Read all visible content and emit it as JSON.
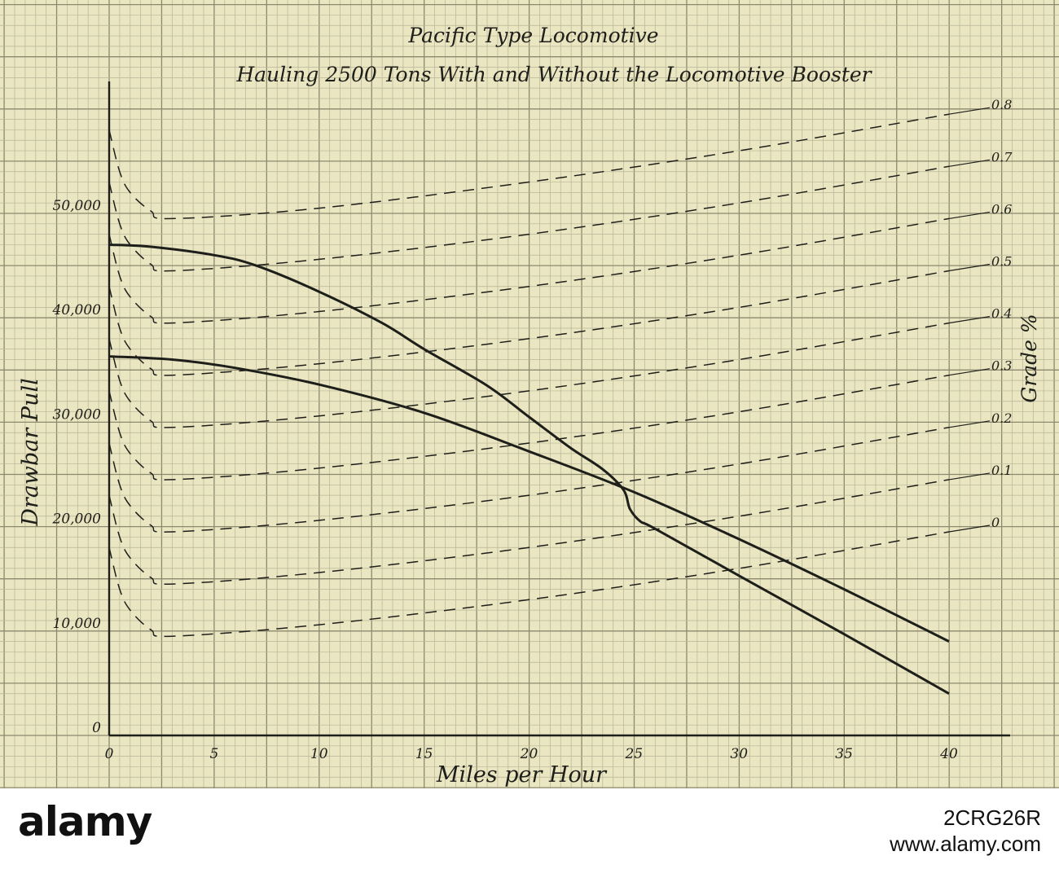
{
  "chart_data": {
    "type": "line",
    "title": "Pacific Type Locomotive",
    "subtitle": "Hauling 2500 Tons With and Without the Locomotive Booster",
    "xlabel": "Miles per Hour",
    "ylabel": "Drawbar Pull",
    "y2label": "Grade %",
    "xlim": [
      0,
      40
    ],
    "ylim": [
      0,
      60000
    ],
    "x_ticks": [
      "0",
      "5",
      "10",
      "15",
      "20",
      "25",
      "30",
      "35",
      "40"
    ],
    "y_ticks": [
      {
        "value": 0,
        "label": "0"
      },
      {
        "value": 10000,
        "label": "10,000"
      },
      {
        "value": 20000,
        "label": "20,000"
      },
      {
        "value": 30000,
        "label": "30,000"
      },
      {
        "value": 40000,
        "label": "40,000"
      },
      {
        "value": 50000,
        "label": "50,000"
      }
    ],
    "grid": true,
    "series": [
      {
        "style": "solid",
        "x": [
          0,
          2,
          5,
          7,
          10,
          13,
          15,
          18,
          20,
          22,
          23.5,
          24.5,
          24.8,
          25.3,
          26,
          30,
          35,
          40
        ],
        "y": [
          47000,
          46800,
          46000,
          45000,
          42500,
          39500,
          37000,
          33500,
          30500,
          27500,
          25500,
          23500,
          21700,
          20500,
          19800,
          15300,
          9700,
          4000
        ]
      },
      {
        "style": "solid",
        "x": [
          0,
          3,
          6,
          10,
          15,
          20,
          25,
          30,
          35,
          40
        ],
        "y": [
          36300,
          36000,
          35200,
          33600,
          30900,
          27200,
          23300,
          18800,
          14000,
          9000
        ]
      }
    ],
    "resistance_curves": [
      {
        "grade": "0.8",
        "x": [
          0,
          0.5,
          1,
          2,
          3,
          10,
          20,
          30,
          40
        ],
        "y": [
          58000,
          54000,
          52000,
          50200,
          49500,
          50500,
          53000,
          56000,
          59500
        ]
      },
      {
        "grade": "0.7",
        "x": [
          0,
          0.5,
          1,
          2,
          3,
          10,
          20,
          30,
          40
        ],
        "y": [
          53000,
          49000,
          47000,
          45100,
          44500,
          45600,
          48000,
          51000,
          54500
        ]
      },
      {
        "grade": "0.6",
        "x": [
          0,
          0.5,
          1,
          2,
          3,
          10,
          20,
          30,
          40
        ],
        "y": [
          48000,
          44000,
          42000,
          40100,
          39500,
          40600,
          43000,
          46000,
          49500
        ]
      },
      {
        "grade": "0.5",
        "x": [
          0,
          0.5,
          1,
          2,
          3,
          10,
          20,
          30,
          40
        ],
        "y": [
          43000,
          39000,
          37000,
          35100,
          34500,
          35600,
          38000,
          41000,
          44500
        ]
      },
      {
        "grade": "0.4",
        "x": [
          0,
          0.5,
          1,
          2,
          3,
          10,
          20,
          30,
          40
        ],
        "y": [
          38000,
          34000,
          32000,
          30100,
          29500,
          30600,
          33000,
          36000,
          39500
        ]
      },
      {
        "grade": "0.3",
        "x": [
          0,
          0.5,
          1,
          2,
          3,
          10,
          20,
          30,
          40
        ],
        "y": [
          33000,
          29000,
          27000,
          25100,
          24500,
          25600,
          28000,
          31000,
          34500
        ]
      },
      {
        "grade": "0.2",
        "x": [
          0,
          0.5,
          1,
          2,
          3,
          10,
          20,
          30,
          40
        ],
        "y": [
          28000,
          24000,
          22000,
          20100,
          19500,
          20600,
          23000,
          26000,
          29500
        ]
      },
      {
        "grade": "0.1",
        "x": [
          0,
          0.5,
          1,
          2,
          3,
          10,
          20,
          30,
          40
        ],
        "y": [
          23000,
          19000,
          17000,
          15100,
          14500,
          15600,
          18000,
          21000,
          24500
        ]
      },
      {
        "grade": "0",
        "x": [
          0,
          0.5,
          1,
          2,
          3,
          10,
          20,
          30,
          40
        ],
        "y": [
          18000,
          14000,
          12000,
          10100,
          9500,
          10600,
          13000,
          16000,
          19500
        ]
      }
    ]
  },
  "watermark": {
    "logo": "alamy",
    "image_id": "2CRG26R",
    "site": "www.alamy.com"
  },
  "colors": {
    "paper": "#e9e6c1",
    "grid_minor": "#b9b497",
    "grid_major": "#8d896f",
    "ink": "#1e1e1a"
  }
}
